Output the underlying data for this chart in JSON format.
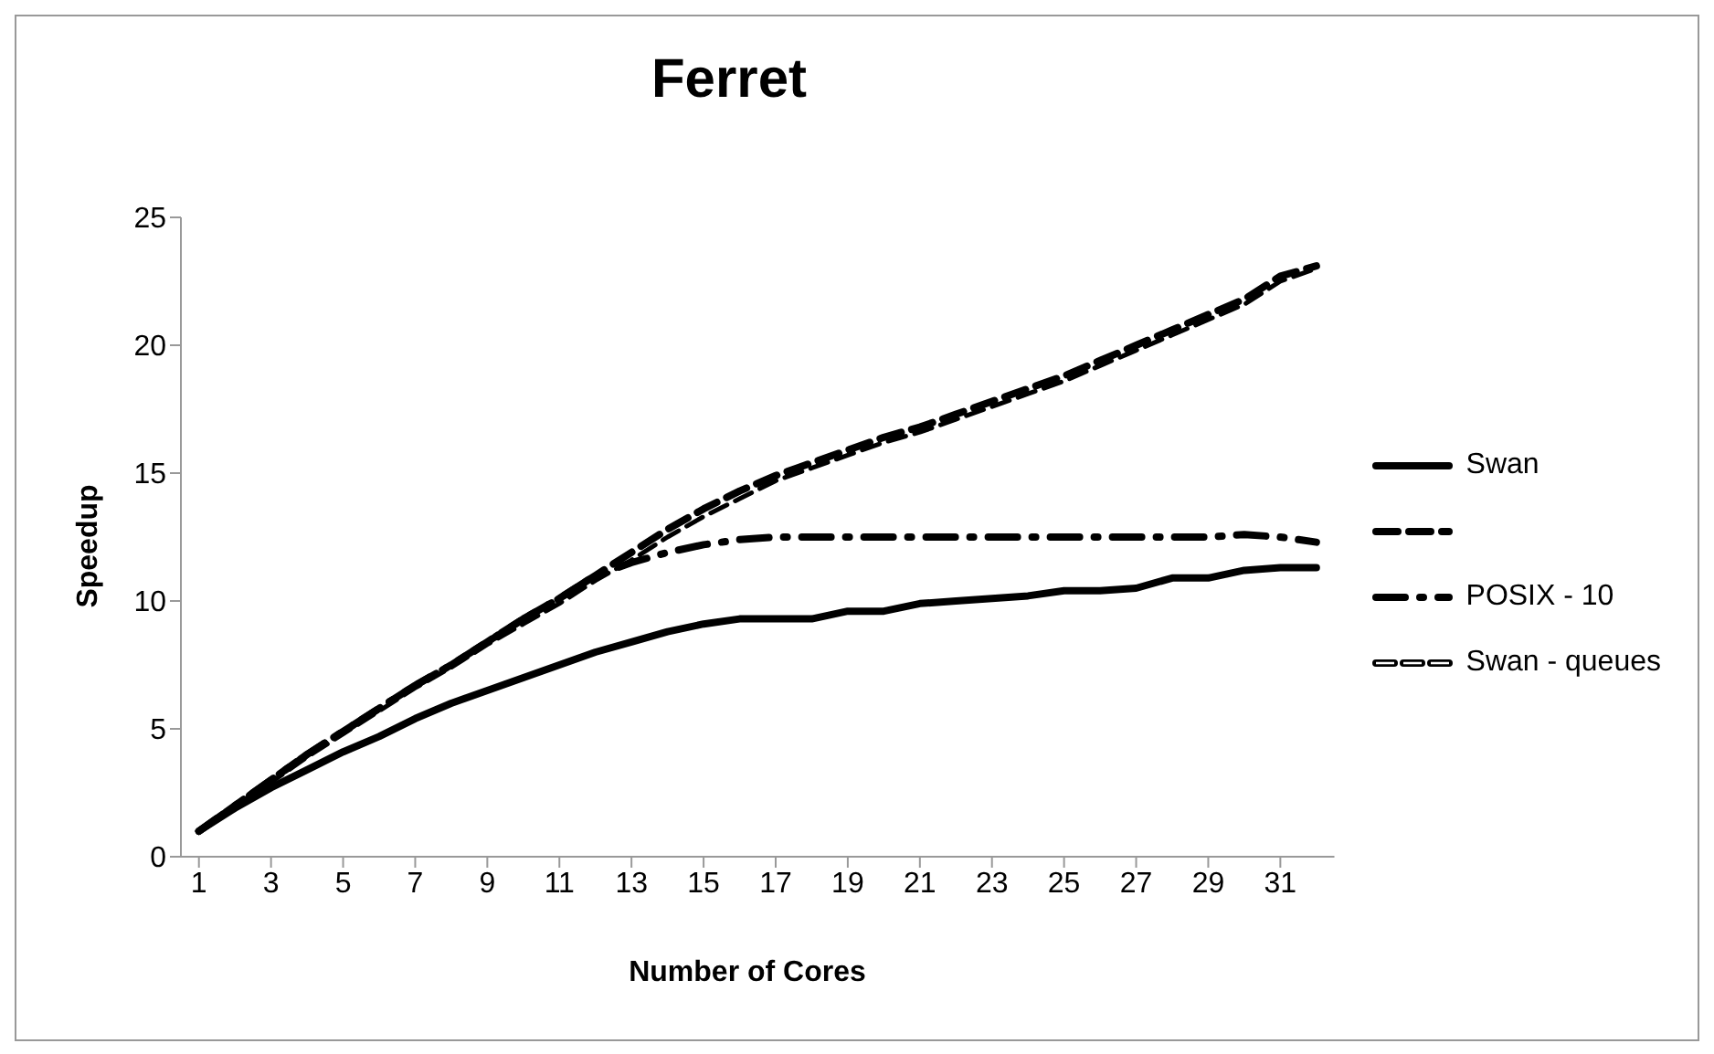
{
  "chart_data": {
    "type": "line",
    "title": "Ferret",
    "xlabel": "Number of Cores",
    "ylabel": "Speedup",
    "x": [
      1,
      2,
      3,
      4,
      5,
      6,
      7,
      8,
      9,
      10,
      11,
      12,
      13,
      14,
      15,
      16,
      17,
      18,
      19,
      20,
      21,
      22,
      23,
      24,
      25,
      26,
      27,
      28,
      29,
      30,
      31,
      32
    ],
    "xlim": [
      0.5,
      32.5
    ],
    "xticks": [
      1,
      3,
      5,
      7,
      9,
      11,
      13,
      15,
      17,
      19,
      21,
      23,
      25,
      27,
      29,
      31
    ],
    "series": [
      {
        "name": "Swan",
        "color": "#000000",
        "line_style": "solid",
        "values": [
          1,
          1.9,
          2.7,
          3.4,
          4.1,
          4.7,
          5.4,
          6.0,
          6.5,
          7.0,
          7.5,
          8.0,
          8.4,
          8.8,
          9.1,
          9.3,
          9.3,
          9.3,
          9.6,
          9.6,
          9.9,
          10.0,
          10.1,
          10.2,
          10.4,
          10.4,
          10.5,
          10.9,
          10.9,
          11.2,
          11.3,
          11.3
        ]
      },
      {
        "color": "#000000",
        "line_style": "dashed",
        "values": [
          1,
          2,
          3,
          4,
          4.9,
          5.8,
          6.7,
          7.5,
          8.4,
          9.3,
          10.1,
          11,
          11.9,
          12.8,
          13.6,
          14.3,
          14.9,
          15.4,
          15.9,
          16.4,
          16.8,
          17.3,
          17.8,
          18.3,
          18.8,
          19.4,
          20,
          20.6,
          21.2,
          21.8,
          22.7,
          23.1
        ]
      },
      {
        "name": "POSIX - 10",
        "color": "#000000",
        "line_style": "dashdot",
        "values": [
          1,
          2,
          3,
          4,
          4.9,
          5.8,
          6.7,
          7.5,
          8.4,
          9.3,
          10.1,
          11,
          11.5,
          11.9,
          12.2,
          12.4,
          12.5,
          12.5,
          12.5,
          12.5,
          12.5,
          12.5,
          12.5,
          12.5,
          12.5,
          12.5,
          12.5,
          12.5,
          12.5,
          12.6,
          12.5,
          12.3
        ]
      },
      {
        "name": "Swan - queues",
        "color": "#000000",
        "line_style": "double",
        "values": [
          1,
          2,
          2.9,
          3.9,
          4.8,
          5.7,
          6.6,
          7.4,
          8.3,
          9.1,
          9.9,
          10.8,
          11.6,
          12.5,
          13.3,
          14.0,
          14.7,
          15.2,
          15.7,
          16.2,
          16.6,
          17.1,
          17.6,
          18.1,
          18.6,
          19.2,
          19.8,
          20.4,
          21.0,
          21.6,
          22.5,
          23.0
        ]
      }
    ],
    "ylim": [
      0,
      25
    ],
    "yticks": [
      0,
      5,
      10,
      15,
      20,
      25
    ],
    "grid": false,
    "legend": "right",
    "marker": "none"
  }
}
